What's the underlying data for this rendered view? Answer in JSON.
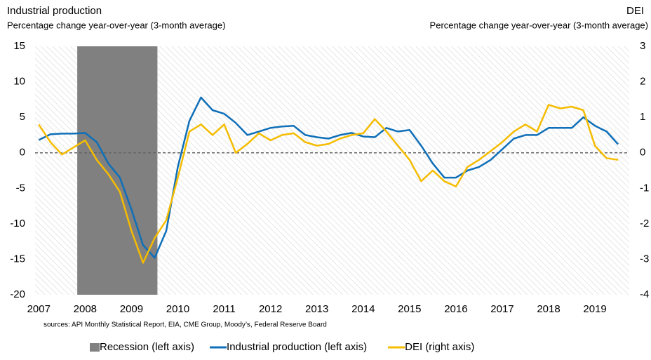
{
  "chart_data": {
    "type": "line",
    "title": "Industrial production",
    "subtitle": "Percentage change year-over-year (3-month average)",
    "y2_title": "DEI",
    "y2_subtitle": "Percentage change year-over-year (3-month average)",
    "source": "sources: API Monthly Statistical Report, EIA, CME Group, Moody’s, Federal Reserve Board",
    "recession": {
      "name": "Recession (left axis)",
      "color": "#808080",
      "x": [
        2007.83,
        2009.56
      ]
    },
    "x": [
      2007.0,
      2007.25,
      2007.5,
      2007.75,
      2008.0,
      2008.25,
      2008.5,
      2008.75,
      2009.0,
      2009.25,
      2009.5,
      2009.75,
      2010.0,
      2010.25,
      2010.5,
      2010.75,
      2011.0,
      2011.25,
      2011.5,
      2011.75,
      2012.0,
      2012.25,
      2012.5,
      2012.75,
      2013.0,
      2013.25,
      2013.5,
      2013.75,
      2014.0,
      2014.25,
      2014.5,
      2014.75,
      2015.0,
      2015.25,
      2015.5,
      2015.75,
      2016.0,
      2016.25,
      2016.5,
      2016.75,
      2017.0,
      2017.25,
      2017.5,
      2017.75,
      2018.0,
      2018.25,
      2018.5,
      2018.75,
      2019.0,
      2019.25,
      2019.5
    ],
    "series": [
      {
        "name": "Industrial production (left axis)",
        "color": "#0f6fb8",
        "axis": "y",
        "values": [
          1.8,
          2.6,
          2.7,
          2.7,
          2.8,
          1.5,
          -1.5,
          -3.5,
          -8,
          -13,
          -14.8,
          -11,
          -2,
          4.5,
          7.8,
          6,
          5.5,
          4.2,
          2.5,
          3.0,
          3.5,
          3.7,
          3.8,
          2.5,
          2.2,
          2.0,
          2.5,
          2.8,
          2.3,
          2.2,
          3.5,
          3.0,
          3.2,
          1.0,
          -1.5,
          -3.5,
          -3.5,
          -2.5,
          -2,
          -1.0,
          0.5,
          2.0,
          2.5,
          2.5,
          3.5,
          3.5,
          3.5,
          5.0,
          3.8,
          3.0,
          1.2
        ]
      },
      {
        "name": "DEI (right axis)",
        "color": "#f5bc00",
        "axis": "y2",
        "values": [
          0.8,
          0.3,
          -0.05,
          0.15,
          0.35,
          -0.2,
          -0.6,
          -1.1,
          -2.2,
          -3.1,
          -2.4,
          -1.9,
          -0.7,
          0.6,
          0.8,
          0.5,
          0.8,
          0,
          0.25,
          0.55,
          0.35,
          0.5,
          0.55,
          0.3,
          0.2,
          0.25,
          0.4,
          0.5,
          0.55,
          0.95,
          0.6,
          0.2,
          -0.2,
          -0.8,
          -0.5,
          -0.8,
          -0.95,
          -0.4,
          -0.2,
          0.05,
          0.3,
          0.6,
          0.8,
          0.6,
          1.35,
          1.25,
          1.3,
          1.2,
          0.2,
          -0.15,
          -0.2
        ]
      }
    ],
    "xlim": [
      2006.92,
      2019.74
    ],
    "xticks": [
      2007,
      2008,
      2009,
      2010,
      2011,
      2012,
      2013,
      2014,
      2015,
      2016,
      2017,
      2018,
      2019
    ],
    "ylim": [
      -20,
      15
    ],
    "yticks": [
      -20,
      -15,
      -10,
      -5,
      0,
      5,
      10,
      15
    ],
    "y2lim": [
      -4,
      3
    ],
    "y2ticks": [
      -4,
      -3,
      -2,
      -1,
      0,
      1,
      2,
      3
    ],
    "zero_line": true
  }
}
